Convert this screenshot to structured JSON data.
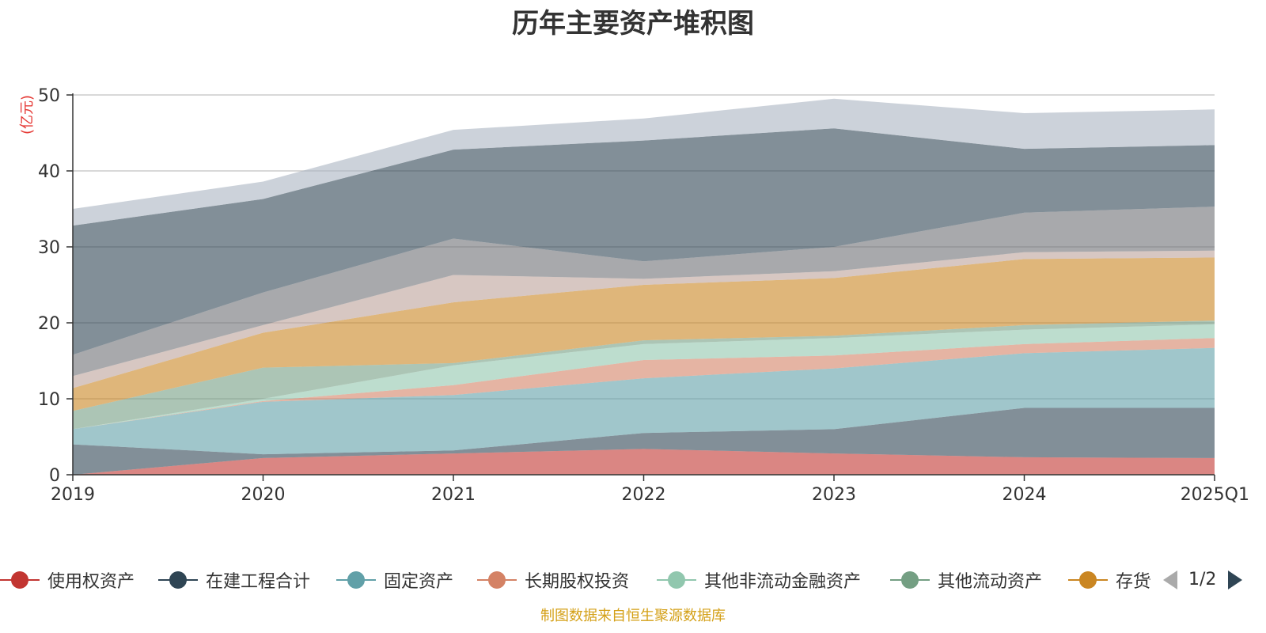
{
  "chart_data": {
    "type": "area",
    "title": "历年主要资产堆积图",
    "ylabel": "(亿元)",
    "ylim": [
      0,
      50
    ],
    "yticks": [
      0,
      10,
      20,
      30,
      40,
      50
    ],
    "categories": [
      "2019",
      "2020",
      "2021",
      "2022",
      "2023",
      "2024",
      "2025Q1"
    ],
    "grid": true,
    "legend_position": "bottom",
    "legend_page": "1/2",
    "stacked": true,
    "series": [
      {
        "name": "使用权资产",
        "color": "#c23531",
        "legend": true,
        "values": [
          0.0,
          2.2,
          2.8,
          3.4,
          2.8,
          2.3,
          2.2
        ]
      },
      {
        "name": "在建工程合计",
        "color": "#2f4554",
        "legend": true,
        "values": [
          4.0,
          0.5,
          0.4,
          2.1,
          3.2,
          6.5,
          6.6
        ]
      },
      {
        "name": "固定资产",
        "color": "#61a0a8",
        "legend": true,
        "values": [
          2.0,
          6.9,
          7.3,
          7.2,
          8.0,
          7.2,
          7.9
        ]
      },
      {
        "name": "长期股权投资",
        "color": "#d48265",
        "legend": true,
        "values": [
          0.0,
          0.1,
          1.3,
          2.4,
          1.7,
          1.2,
          1.3
        ]
      },
      {
        "name": "其他非流动金融资产",
        "color": "#91c7ae",
        "legend": true,
        "values": [
          0.0,
          0.3,
          2.6,
          2.1,
          2.3,
          1.9,
          1.8
        ]
      },
      {
        "name": "其他流动资产",
        "color": "#749f83",
        "legend": true,
        "values": [
          2.4,
          4.1,
          0.3,
          0.5,
          0.3,
          0.6,
          0.5
        ]
      },
      {
        "name": "存货",
        "color": "#ca8622",
        "legend": true,
        "values": [
          3.0,
          4.6,
          8.0,
          7.3,
          7.6,
          8.7,
          8.3
        ]
      },
      {
        "name": "",
        "color": "#bda29a",
        "legend": false,
        "values": [
          1.6,
          1.0,
          3.6,
          0.8,
          0.9,
          0.9,
          0.9
        ]
      },
      {
        "name": "",
        "color": "#6e7074",
        "legend": false,
        "values": [
          2.8,
          4.3,
          4.8,
          2.3,
          3.2,
          5.2,
          5.8
        ]
      },
      {
        "name": "",
        "color": "#2f4554",
        "legend": false,
        "values": [
          17.0,
          12.3,
          11.7,
          15.9,
          15.6,
          8.4,
          8.1
        ]
      },
      {
        "name": "",
        "color": "#aab4c2",
        "legend": false,
        "values": [
          2.2,
          2.3,
          2.6,
          2.9,
          3.9,
          4.7,
          4.7
        ]
      }
    ]
  },
  "source_note": "制图数据来自恒生聚源数据库"
}
